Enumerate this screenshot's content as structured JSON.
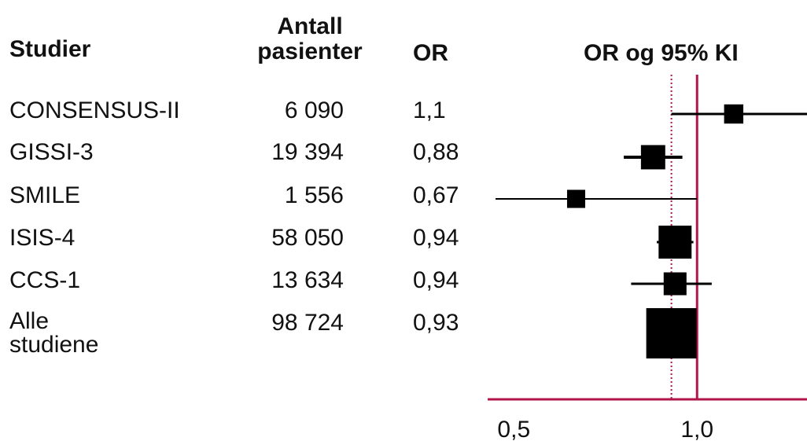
{
  "headers": {
    "study": "Studier",
    "n_line1": "Antall",
    "n_line2": "pasienter",
    "or": "OR",
    "ci": "OR og 95% KI"
  },
  "colors": {
    "axis": "#b0164a",
    "marker": "#000000",
    "text": "#111111"
  },
  "chart_data": {
    "type": "forest",
    "x_scale": "linear",
    "xlim": [
      0.45,
      1.3
    ],
    "x_ticks": [
      {
        "value": 0.5,
        "label": "0,5"
      },
      {
        "value": 1.0,
        "label": "1,0"
      }
    ],
    "reference_line": 1.0,
    "pooled_line": 0.93,
    "studies": [
      {
        "name": "CONSENSUS-II",
        "n": "6 090",
        "or_label": "1,1",
        "or": 1.1,
        "ci_low": 0.93,
        "ci_high": 1.3,
        "weight": 0.14
      },
      {
        "name": "GISSI-3",
        "n": "19 394",
        "or_label": "0,88",
        "or": 0.88,
        "ci_low": 0.8,
        "ci_high": 0.96,
        "weight": 0.28
      },
      {
        "name": "SMILE",
        "n": "1 556",
        "or_label": "0,67",
        "or": 0.67,
        "ci_low": 0.45,
        "ci_high": 1.0,
        "weight": 0.11
      },
      {
        "name": "ISIS-4",
        "n": "58 050",
        "or_label": "0,94",
        "or": 0.94,
        "ci_low": 0.89,
        "ci_high": 0.99,
        "weight": 0.52
      },
      {
        "name": "CCS-1",
        "n": "13 634",
        "or_label": "0,94",
        "or": 0.94,
        "ci_low": 0.82,
        "ci_high": 1.04,
        "weight": 0.24
      },
      {
        "name_line1": "Alle",
        "name_line2": "studiene",
        "n": "98 724",
        "or_label": "0,93",
        "or": 0.93,
        "ci_low": 0.9,
        "ci_high": 0.96,
        "weight": 1.0,
        "pooled": true
      }
    ]
  }
}
